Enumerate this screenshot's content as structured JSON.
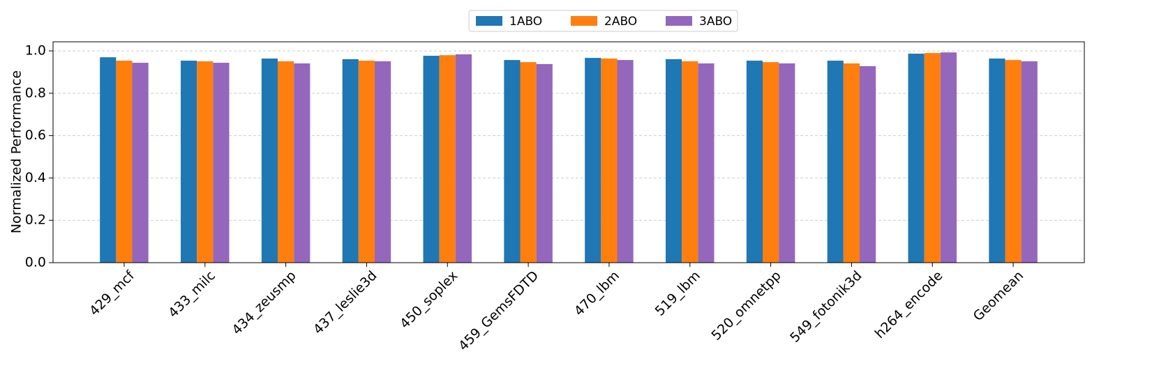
{
  "chart_data": {
    "type": "bar",
    "y_label": "Normalized Performance",
    "categories": [
      "429_mcf",
      "433_milc",
      "434_zeusmp",
      "437_leslie3d",
      "450_soplex",
      "459_GemsFDTD",
      "470_lbm",
      "519_lbm",
      "520_omnetpp",
      "549_fotonik3d",
      "h264_encode",
      "Geomean"
    ],
    "series": [
      {
        "name": "1ABO",
        "color": "#1f77b4",
        "values": [
          0.97,
          0.954,
          0.964,
          0.961,
          0.977,
          0.957,
          0.967,
          0.961,
          0.954,
          0.954,
          0.987,
          0.964
        ]
      },
      {
        "name": "2ABO",
        "color": "#ff7f0e",
        "values": [
          0.954,
          0.951,
          0.951,
          0.954,
          0.98,
          0.947,
          0.964,
          0.951,
          0.947,
          0.941,
          0.99,
          0.957
        ]
      },
      {
        "name": "3ABO",
        "color": "#9467bd",
        "values": [
          0.944,
          0.944,
          0.941,
          0.951,
          0.984,
          0.938,
          0.957,
          0.941,
          0.941,
          0.928,
          0.993,
          0.951
        ]
      }
    ],
    "ylim": [
      0,
      1.043
    ],
    "yticks": [
      {
        "value": 0,
        "label": "0.0"
      },
      {
        "value": 0.2,
        "label": "0.2"
      },
      {
        "value": 0.4,
        "label": "0.4"
      },
      {
        "value": 0.6,
        "label": "0.6"
      },
      {
        "value": 0.8,
        "label": "0.8"
      },
      {
        "value": 1,
        "label": "1.0"
      }
    ],
    "grid": true,
    "legend": "top"
  }
}
